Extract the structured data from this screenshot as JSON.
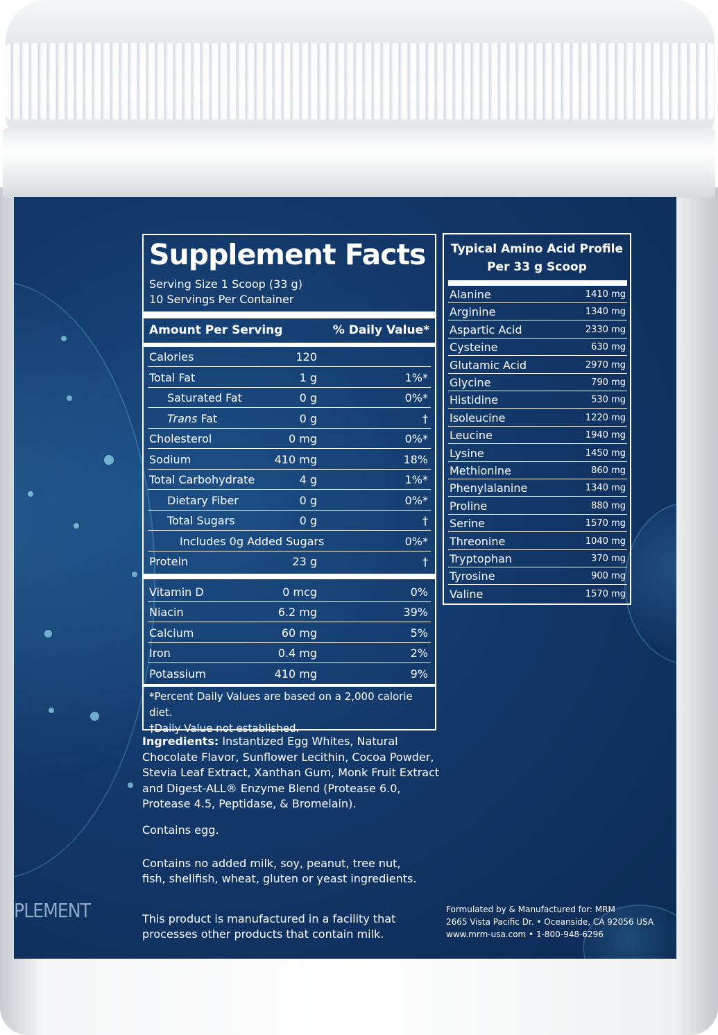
{
  "supplement_facts": {
    "title": "Supplement Facts",
    "serving_size": "Serving Size 1 Scoop (33 g)",
    "servings_per_container": "10 Servings Per Container",
    "amount_header": "Amount Per Serving",
    "dv_header": "% Daily Value*",
    "rows": [
      {
        "name": "Calories",
        "amount": "120",
        "dv": ""
      },
      {
        "name": "Total Fat",
        "amount": "1 g",
        "dv": "1%*"
      },
      {
        "name": "Saturated Fat",
        "amount": "0 g",
        "dv": "0%*"
      },
      {
        "name": "Trans Fat",
        "amount": "0 g",
        "dv": "†"
      },
      {
        "name": "Cholesterol",
        "amount": "0 mg",
        "dv": "0%*"
      },
      {
        "name": "Sodium",
        "amount": "410 mg",
        "dv": "18%"
      },
      {
        "name": "Total Carbohydrate",
        "amount": "4 g",
        "dv": "1%*"
      },
      {
        "name": "Dietary Fiber",
        "amount": "0 g",
        "dv": "0%*"
      },
      {
        "name": "Total Sugars",
        "amount": "0 g",
        "dv": "†"
      },
      {
        "name": "Includes 0g Added Sugars",
        "amount": "",
        "dv": "0%*"
      },
      {
        "name": "Protein",
        "amount": "23 g",
        "dv": "†"
      },
      {
        "name": "Vitamin D",
        "amount": "0 mcg",
        "dv": "0%"
      },
      {
        "name": "Niacin",
        "amount": "6.2 mg",
        "dv": "39%"
      },
      {
        "name": "Calcium",
        "amount": "60 mg",
        "dv": "5%"
      },
      {
        "name": "Iron",
        "amount": "0.4 mg",
        "dv": "2%"
      },
      {
        "name": "Potassium",
        "amount": "410 mg",
        "dv": "9%"
      }
    ],
    "footnote_1": "*Percent Daily Values are based on a 2,000 calorie diet.",
    "footnote_2": "†Daily Value not established."
  },
  "amino_profile": {
    "title_line1": "Typical Amino Acid Profile",
    "title_line2": "Per 33 g Scoop",
    "rows": [
      {
        "name": "Alanine",
        "value": "1410 mg"
      },
      {
        "name": "Arginine",
        "value": "1340 mg"
      },
      {
        "name": "Aspartic Acid",
        "value": "2330 mg"
      },
      {
        "name": "Cysteine",
        "value": "630 mg"
      },
      {
        "name": "Glutamic Acid",
        "value": "2970 mg"
      },
      {
        "name": "Glycine",
        "value": "790 mg"
      },
      {
        "name": "Histidine",
        "value": "530 mg"
      },
      {
        "name": "Isoleucine",
        "value": "1220 mg"
      },
      {
        "name": "Leucine",
        "value": "1940 mg"
      },
      {
        "name": "Lysine",
        "value": "1450 mg"
      },
      {
        "name": "Methionine",
        "value": "860 mg"
      },
      {
        "name": "Phenylalanine",
        "value": "1340 mg"
      },
      {
        "name": "Proline",
        "value": "880 mg"
      },
      {
        "name": "Serine",
        "value": "1570 mg"
      },
      {
        "name": "Threonine",
        "value": "1040 mg"
      },
      {
        "name": "Tryptophan",
        "value": "370 mg"
      },
      {
        "name": "Tyrosine",
        "value": "900 mg"
      },
      {
        "name": "Valine",
        "value": "1570 mg"
      }
    ]
  },
  "ingredients": {
    "label": "Ingredients:",
    "text": "Instantized Egg Whites, Natural Chocolate Flavor, Sunflower Lecithin, Cocoa Powder, Stevia Leaf Extract, Xanthan Gum, Monk Fruit Extract and Digest-ALL® Enzyme Blend (Protease 6.0, Protease 4.5, Peptidase, & Bromelain)."
  },
  "allergen": "Contains egg.",
  "free_from": "Contains no added milk, soy, peanut, tree nut, fish, shellfish, wheat, gluten or yeast ingredients.",
  "facility": "This product is manufactured in a facility that processes other products that contain milk.",
  "manufacturer": {
    "line1": "Formulated by & Manufactured for: MRM",
    "line2": "2665 Vista Pacific Dr. • Oceanside, CA 92056 USA",
    "line3": "www.mrm-usa.com • 1-800-948-6296"
  },
  "side_text": "PLEMENT",
  "colors": {
    "label_blue": "#13386a",
    "text": "#ffffff",
    "lid": "#eef1f3"
  }
}
